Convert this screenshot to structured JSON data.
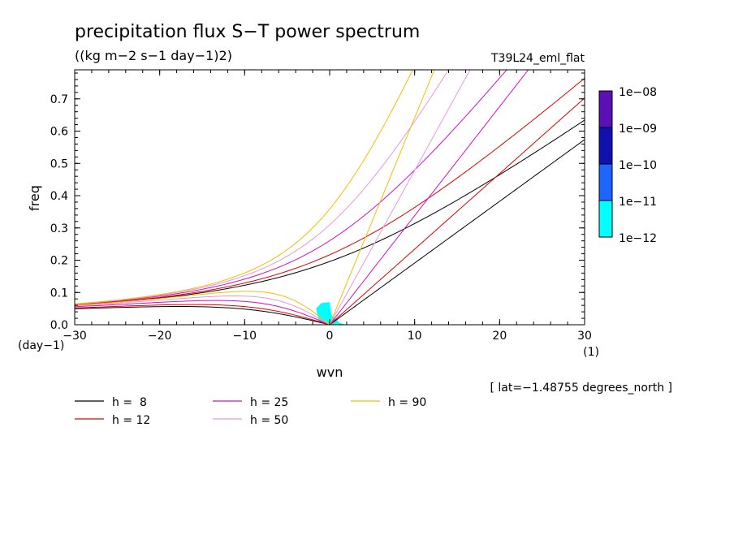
{
  "chart_data": {
    "type": "line",
    "title": "precipitation flux S−T power spectrum",
    "subtitle": "((kg m−2 s−1 day−1)2)",
    "run_label": "T39L24_eml_flat",
    "xlabel": "wvn",
    "ylabel": "freq",
    "x_unit": "(1)",
    "y_unit": "(day−1)",
    "footnote": "[ lat=−1.48755 degrees_north ]",
    "xlim": [
      -30,
      30
    ],
    "ylim": [
      0,
      0.79
    ],
    "x_ticks": [
      {
        "value": -30,
        "label": "−30"
      },
      {
        "value": -20,
        "label": "−20"
      },
      {
        "value": -10,
        "label": "−10"
      },
      {
        "value": 0,
        "label": "0"
      },
      {
        "value": 10,
        "label": "10"
      },
      {
        "value": 20,
        "label": "20"
      },
      {
        "value": 30,
        "label": "30"
      }
    ],
    "y_ticks": [
      {
        "value": 0.0,
        "label": "0.0"
      },
      {
        "value": 0.1,
        "label": "0.1"
      },
      {
        "value": 0.2,
        "label": "0.2"
      },
      {
        "value": 0.3,
        "label": "0.3"
      },
      {
        "value": 0.4,
        "label": "0.4"
      },
      {
        "value": 0.5,
        "label": "0.5"
      },
      {
        "value": 0.6,
        "label": "0.6"
      },
      {
        "value": 0.7,
        "label": "0.7"
      }
    ],
    "colorbar": {
      "levels": [
        "1e−08",
        "1e−09",
        "1e−10",
        "1e−11",
        "1e−12"
      ],
      "colors": [
        "#5a10b4",
        "#1010b0",
        "#1e64ff",
        "#00ffff"
      ]
    },
    "series": [
      {
        "name": "h =  8",
        "color": "#000000"
      },
      {
        "name": "h = 12",
        "color": "#e00000"
      },
      {
        "name": "h = 25",
        "color": "#d010c0"
      },
      {
        "name": "h = 50",
        "color": "#e898e0"
      },
      {
        "name": "h = 90",
        "color": "#f0c000"
      }
    ],
    "shaded_region": {
      "x": [
        -2,
        2
      ],
      "y": [
        0,
        0.07
      ],
      "color": "#00ffff"
    }
  }
}
